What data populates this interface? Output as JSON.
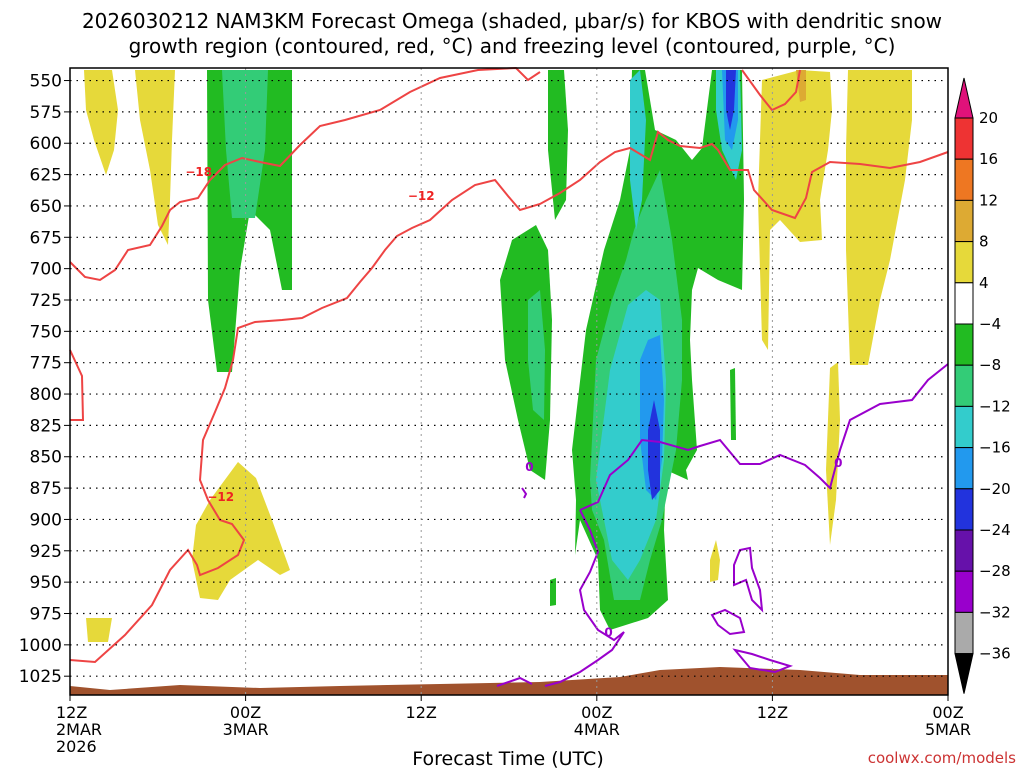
{
  "chart_data": {
    "type": "time-height cross section",
    "title_line1": "2026030212 NAM3KM Forecast Omega (shaded, μbar/s) for KBOS with dendritic snow",
    "title_line2": "growth region (contoured, red, °C) and freezing level (contoured, purple, °C)",
    "xlabel": "Forecast Time (UTC)",
    "credit": "coolwx.com/models",
    "y_levels_hpa": [
      550,
      575,
      600,
      625,
      650,
      675,
      700,
      725,
      750,
      775,
      800,
      825,
      850,
      875,
      900,
      925,
      950,
      975,
      1000,
      1025
    ],
    "x_ticks": [
      {
        "hours": 0,
        "line1": "12Z",
        "line2": "2MAR",
        "line3": "2026"
      },
      {
        "hours": 12,
        "line1": "00Z",
        "line2": "3MAR",
        "line3": ""
      },
      {
        "hours": 24,
        "line1": "12Z",
        "line2": "",
        "line3": ""
      },
      {
        "hours": 36,
        "line1": "00Z",
        "line2": "4MAR",
        "line3": ""
      },
      {
        "hours": 48,
        "line1": "12Z",
        "line2": "",
        "line3": ""
      },
      {
        "hours": 60,
        "line1": "00Z",
        "line2": "5MAR",
        "line3": ""
      }
    ],
    "x_range_hours": [
      0,
      60
    ],
    "y_range_hpa": [
      540,
      1040
    ],
    "colorbar": {
      "labels": [
        "20",
        "16",
        "12",
        "8",
        "4",
        "−4",
        "−8",
        "−12",
        "−16",
        "−20",
        "−24",
        "−28",
        "−32",
        "−36"
      ],
      "colors": [
        "#e0127a",
        "#ee3333",
        "#ee7722",
        "#ddaa33",
        "#e6d93a",
        "#ffffff",
        "#22bb22",
        "#33cc77",
        "#33cccc",
        "#2299ee",
        "#2233dd",
        "#6611aa",
        "#9900cc",
        "#aaaaaa",
        "#000000"
      ]
    },
    "contour_labels": {
      "red": [
        {
          "text": "−18",
          "hours": 8.8,
          "hpa": 623
        },
        {
          "text": "−12",
          "hours": 24.0,
          "hpa": 642
        },
        {
          "text": "−12",
          "hours": 10.3,
          "hpa": 882
        }
      ],
      "purple": [
        {
          "text": "0",
          "hours": 31.4,
          "hpa": 858
        },
        {
          "text": "0",
          "hours": 36.8,
          "hpa": 990
        },
        {
          "text": "0",
          "hours": 52.5,
          "hpa": 855
        }
      ]
    }
  }
}
